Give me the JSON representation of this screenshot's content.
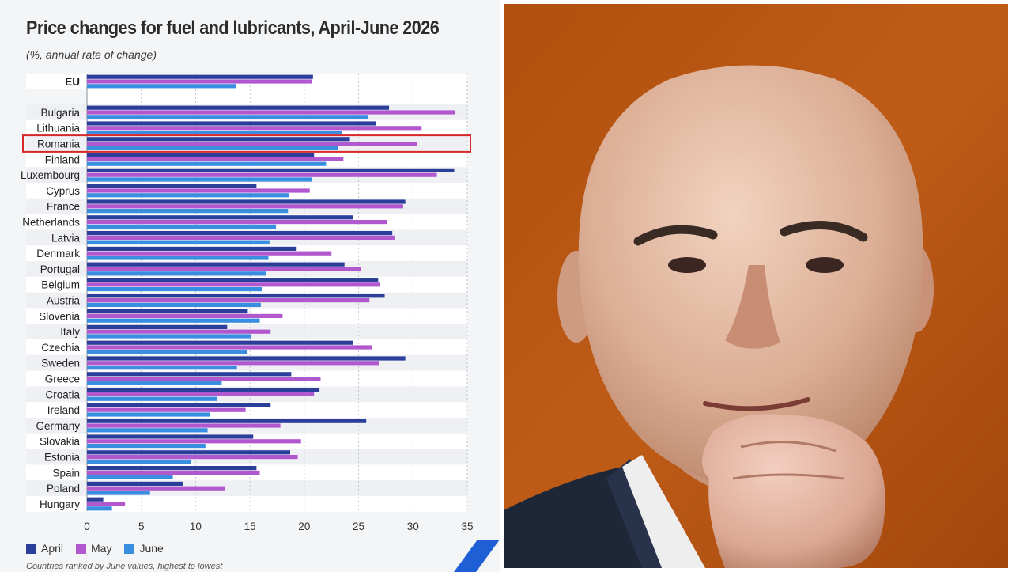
{
  "colors": {
    "april": "#2b3f9a",
    "may": "#b158cf",
    "june": "#3a8ee0",
    "highlight": "#d62828"
  },
  "chart_data": {
    "type": "bar",
    "orientation": "horizontal",
    "title": "Price changes for fuel and lubricants, April-June 2026",
    "subtitle": "(%, annual rate of change)",
    "categories": [
      "EU",
      "Bulgaria",
      "Lithuania",
      "Romania",
      "Finland",
      "Luxembourg",
      "Cyprus",
      "France",
      "Netherlands",
      "Latvia",
      "Denmark",
      "Portugal",
      "Belgium",
      "Austria",
      "Slovenia",
      "Italy",
      "Czechia",
      "Sweden",
      "Greece",
      "Croatia",
      "Ireland",
      "Germany",
      "Slovakia",
      "Estonia",
      "Spain",
      "Poland",
      "Hungary"
    ],
    "series": [
      {
        "name": "April",
        "values": [
          20.8,
          27.8,
          26.6,
          24.2,
          20.9,
          33.8,
          15.6,
          29.3,
          24.5,
          28.1,
          19.3,
          23.7,
          26.8,
          27.4,
          14.8,
          12.9,
          24.5,
          29.3,
          18.8,
          21.4,
          16.9,
          25.7,
          15.3,
          18.7,
          15.6,
          8.8,
          1.5
        ]
      },
      {
        "name": "May",
        "values": [
          20.7,
          33.9,
          30.8,
          30.4,
          23.6,
          32.2,
          20.5,
          29.1,
          27.6,
          28.3,
          22.5,
          25.2,
          27.0,
          26.0,
          18.0,
          16.9,
          26.2,
          26.9,
          21.5,
          20.9,
          14.6,
          17.8,
          19.7,
          19.4,
          15.9,
          12.7,
          3.5
        ]
      },
      {
        "name": "June",
        "values": [
          13.7,
          25.9,
          23.5,
          23.1,
          22.0,
          20.7,
          18.6,
          18.5,
          17.4,
          16.8,
          16.7,
          16.5,
          16.1,
          16.0,
          15.9,
          15.1,
          14.7,
          13.8,
          12.4,
          12.0,
          11.3,
          11.1,
          10.9,
          9.6,
          7.9,
          5.8,
          2.3
        ]
      }
    ],
    "highlighted_category": "Romania",
    "xlim": [
      0,
      35
    ],
    "xticks": [
      0,
      5,
      10,
      15,
      20,
      25,
      30,
      35
    ],
    "grid": "vertical dashed",
    "legend_position": "bottom-left",
    "footnote": "Countries ranked by June values, highest to lowest"
  }
}
